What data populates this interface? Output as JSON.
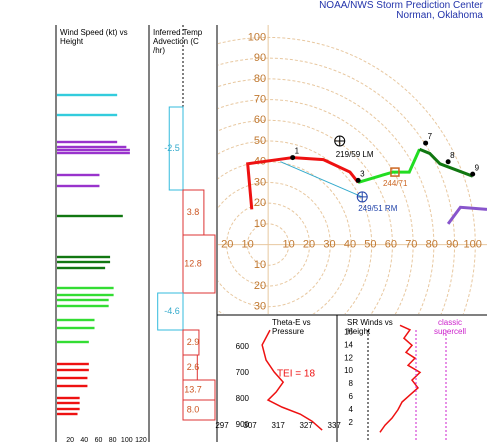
{
  "header": {
    "org": "NOAA/NWS Storm Prediction Center",
    "place": "Norman, Oklahoma"
  },
  "chart_data": [
    {
      "type": "barh",
      "title": "Wind Speed (kt) vs Height",
      "values": [
        85,
        85,
        85,
        98,
        103,
        103,
        60,
        60,
        93,
        75,
        75,
        68,
        80,
        80,
        73,
        73,
        53,
        53,
        45,
        45,
        45,
        43,
        43,
        32,
        32,
        32,
        29
      ],
      "colors": [
        "#33ccdd",
        "#33ccdd",
        "#9933cc",
        "#9933cc",
        "#9933cc",
        "#9933cc",
        "#9933cc",
        "#9933cc",
        "#117711",
        "#117711",
        "#117711",
        "#117711",
        "#33dd33",
        "#33dd33",
        "#33dd33",
        "#33dd33",
        "#33dd33",
        "#33dd33",
        "#33dd33",
        "#ee1111",
        "#ee1111",
        "#ee1111",
        "#ee1111",
        "#ee1111",
        "#ee1111",
        "#ee1111",
        "#ee1111"
      ],
      "xlim": [
        0,
        130
      ],
      "xticks": [
        20,
        40,
        60,
        80,
        100,
        120
      ]
    },
    {
      "type": "advection",
      "title": "Inferred Temp Advection (C /hr)",
      "values": [
        -2.5,
        3.8,
        12.8,
        -4.6,
        2.9,
        2.6,
        13.7,
        8.0
      ],
      "value_labels": [
        "-2.5",
        "3.8",
        "12.8",
        "-4.6",
        "2.9",
        "2.6",
        "13.7",
        "8.0"
      ]
    },
    {
      "type": "hodograph",
      "xlim": [
        -25,
        107
      ],
      "ylim": [
        -34,
        106
      ],
      "xticks": [
        {
          "value": -20,
          "label": "20"
        },
        {
          "value": -10,
          "label": "10"
        },
        10,
        20,
        30,
        40,
        50,
        60,
        70,
        80,
        90,
        100
      ],
      "yticks": [
        {
          "value": -30,
          "label": "30"
        },
        {
          "value": -20,
          "label": "20"
        },
        {
          "value": -10,
          "label": "10"
        },
        10,
        20,
        30,
        40,
        50,
        60,
        70,
        80,
        90,
        100
      ],
      "series": [
        {
          "color": "#ee1111",
          "x": [
            -8,
            -10,
            12,
            27,
            40,
            44
          ],
          "y": [
            17,
            39,
            42,
            41,
            35,
            30
          ]
        },
        {
          "color": "#22dd22",
          "x": [
            44,
            61,
            69,
            74
          ],
          "y": [
            30,
            35,
            35,
            46
          ]
        },
        {
          "color": "#117711",
          "x": [
            74,
            79,
            84,
            100
          ],
          "y": [
            46,
            44,
            39,
            33
          ]
        },
        {
          "color": "#8855cc",
          "x": [
            88,
            94,
            107
          ],
          "y": [
            10,
            18,
            17
          ]
        },
        {
          "color": "#33aacc",
          "x": [
            6,
            46
          ],
          "y": [
            40,
            23
          ]
        }
      ],
      "points": [
        {
          "label": "1",
          "x": 12,
          "y": 42
        },
        {
          "label": "3",
          "x": 44,
          "y": 31
        },
        {
          "label": "7",
          "x": 77,
          "y": 49
        },
        {
          "label": "8",
          "x": 88,
          "y": 40
        },
        {
          "label": "9",
          "x": 100,
          "y": 34
        }
      ],
      "storm_motions": [
        {
          "label": "219/59 LM",
          "x": 35,
          "y": 50
        },
        {
          "label": "249/51 RM",
          "x": 46,
          "y": 23
        },
        {
          "label": "244/71",
          "x": 62,
          "y": 35
        }
      ]
    },
    {
      "type": "line",
      "title": "Theta-E vs Pressure",
      "annotation": "TEI = 18",
      "color": "#ee1111",
      "x": [
        314.1,
        311.3,
        312.7,
        315.6,
        318.8,
        316.3,
        313.4,
        318.4,
        324.9,
        329.1,
        332.7
      ],
      "y": [
        535,
        592,
        650,
        696,
        735,
        773,
        804,
        831,
        858,
        885,
        919
      ],
      "xlim": [
        295.2,
        338
      ],
      "xticks": [
        297,
        307,
        317,
        327,
        337
      ],
      "ylim": [
        965,
        477
      ],
      "yticks": [
        600,
        700,
        800,
        900
      ]
    },
    {
      "type": "line",
      "title": "SR Winds vs Height",
      "annotation": "classic supercell",
      "color": "#ee1111",
      "x": [
        52.5,
        60.8,
        55.8,
        62.5,
        57.5,
        65,
        59.2,
        69.2,
        62.5,
        67.5,
        60.8,
        54.2,
        50.8,
        45.8,
        40,
        35.8
      ],
      "y": [
        17.1,
        16.4,
        15.1,
        14.0,
        12.9,
        12.0,
        10.9,
        9.8,
        8.6,
        7.4,
        6.3,
        5.2,
        4.0,
        2.7,
        1.6,
        0.5
      ],
      "xlim": [
        0,
        125
      ],
      "ylim": [
        -1,
        18.7
      ],
      "yticks": [
        2,
        4,
        6,
        8,
        10,
        12,
        14,
        16
      ]
    }
  ]
}
